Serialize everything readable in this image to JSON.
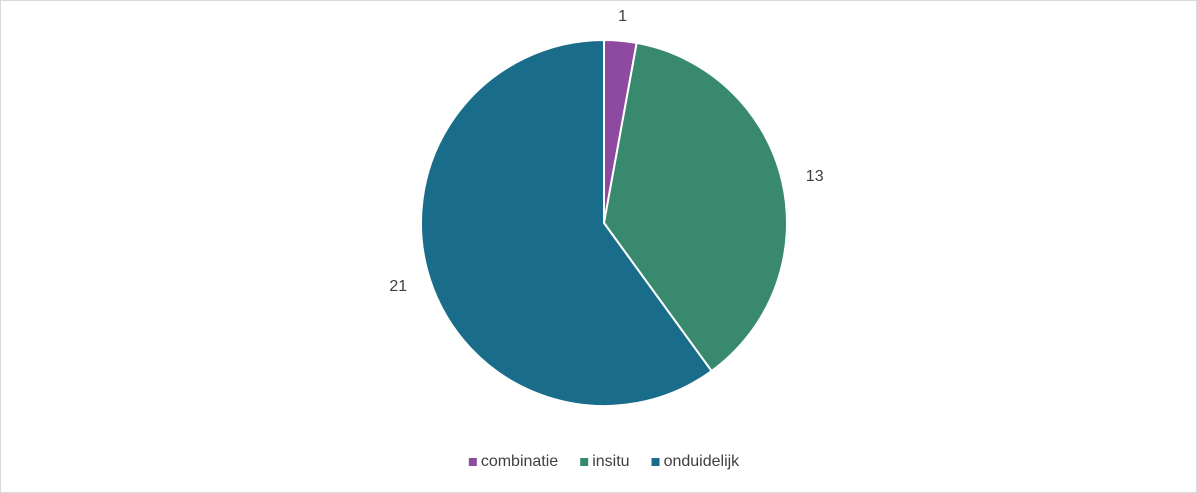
{
  "chart_data": {
    "type": "pie",
    "categories": [
      "combinatie",
      "insitu",
      "onduidelijk"
    ],
    "values": [
      1,
      13,
      21
    ],
    "colors": [
      "#8e4aa0",
      "#38896d",
      "#1a6d8a"
    ],
    "legend": "bottom"
  }
}
